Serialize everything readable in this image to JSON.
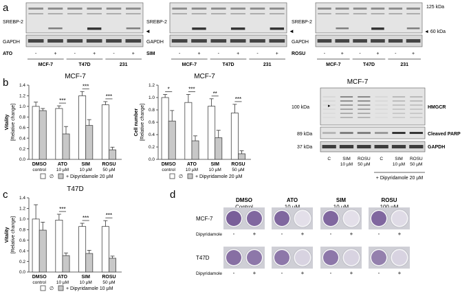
{
  "panels": {
    "a": {
      "letter": "a",
      "blots": [
        {
          "treatment": "ATO",
          "signs": [
            "-",
            "+",
            "-",
            "+",
            "-",
            "+"
          ]
        },
        {
          "treatment": "SIM",
          "signs": [
            "-",
            "+",
            "-",
            "+",
            "-",
            "+"
          ]
        },
        {
          "treatment": "ROSU",
          "signs": [
            "-",
            "+",
            "-",
            "+",
            "-",
            "+"
          ]
        }
      ],
      "protein_top": "SREBP-2",
      "protein_bottom": "GAPDH",
      "cell_lines": [
        "MCF-7",
        "T47D",
        "231"
      ],
      "marker_125": "125 kDa",
      "marker_60": "◄ 60 kDa"
    },
    "b": {
      "letter": "b",
      "western": {
        "title": "MCF-7",
        "marker_100": "100 kDa",
        "marker_89": "89 kDa",
        "marker_37": "37 kDa",
        "labels": [
          "HMGCR",
          "Cleaved PARP",
          "GAPDH"
        ],
        "lanes": [
          "C",
          "SIM\n10 µM",
          "ROSU\n50 µM",
          "C",
          "SIM\n10 µM",
          "ROSU\n50 µM"
        ],
        "dipy_label": "+ Dipyridamole 20 µM"
      },
      "legend_empty": "∅",
      "legend_dipy": "+ Dipyridamole 20 µM"
    },
    "c": {
      "letter": "c",
      "legend_empty": "∅",
      "legend_dipy": "+ Dipyridamole 10 µM"
    },
    "d": {
      "letter": "d",
      "treatments": [
        {
          "name": "DMSO",
          "dose": "Control"
        },
        {
          "name": "ATO",
          "dose": "10 µM"
        },
        {
          "name": "SIM",
          "dose": "10 µM"
        },
        {
          "name": "ROSU",
          "dose": "100 µM"
        }
      ],
      "rows": [
        "MCF-7",
        "T47D"
      ],
      "dipy_row_label": "Dipyridamole",
      "signs": [
        "-",
        "+"
      ]
    }
  },
  "chart_data": [
    {
      "type": "bar",
      "panel": "b-left",
      "title": "MCF-7",
      "ylabel": "Vitality\n[Relative change]",
      "ylim": [
        0,
        1.4
      ],
      "yticks": [
        "0.0",
        "0.2",
        "0.4",
        "0.6",
        "0.8",
        "1.0",
        "1.2",
        "1.4"
      ],
      "categories": [
        "DMSO\ncontrol",
        "ATO\n10 µM",
        "SIM\n10 µM",
        "ROSU\n50 µM"
      ],
      "series": [
        {
          "name": "∅",
          "values": [
            1.0,
            0.96,
            1.2,
            1.03
          ],
          "errors": [
            0.08,
            0.05,
            0.08,
            0.06
          ]
        },
        {
          "name": "+ Dipyridamole 20 µM",
          "values": [
            0.92,
            0.48,
            0.64,
            0.18
          ],
          "errors": [
            0.04,
            0.14,
            0.11,
            0.05
          ]
        }
      ],
      "significance": [
        "",
        "***",
        "***",
        "***"
      ]
    },
    {
      "type": "bar",
      "panel": "b-middle",
      "title": "MCF-7",
      "ylabel": "Cell number\n[Relative change]",
      "ylim": [
        0,
        1.2
      ],
      "yticks": [
        "0.0",
        "0.2",
        "0.4",
        "0.6",
        "0.8",
        "1.0",
        "1.2"
      ],
      "categories": [
        "DMSO\ncontrol",
        "ATO\n10 µM",
        "SIM\n10 µM",
        "ROSU\n50 µM"
      ],
      "series": [
        {
          "name": "∅",
          "values": [
            1.0,
            0.92,
            0.86,
            0.75
          ],
          "errors": [
            0.05,
            0.13,
            0.12,
            0.14
          ]
        },
        {
          "name": "+ Dipyridamole 20 µM",
          "values": [
            0.62,
            0.3,
            0.35,
            0.09
          ],
          "errors": [
            0.17,
            0.08,
            0.12,
            0.05
          ]
        }
      ],
      "significance": [
        "*",
        "***",
        "**",
        "***"
      ]
    },
    {
      "type": "bar",
      "panel": "c",
      "title": "T47D",
      "ylabel": "Vitality\n[Relative change]",
      "ylim": [
        0,
        1.4
      ],
      "yticks": [
        "0.0",
        "0.2",
        "0.4",
        "0.6",
        "0.8",
        "1.0",
        "1.2",
        "1.4"
      ],
      "categories": [
        "DMSO\ncontrol",
        "ATO\n10 µM",
        "SIM\n10 µM",
        "ROSU\n50 µM"
      ],
      "series": [
        {
          "name": "∅",
          "values": [
            1.0,
            0.98,
            0.86,
            0.86
          ],
          "errors": [
            0.27,
            0.11,
            0.06,
            0.11
          ]
        },
        {
          "name": "+ Dipyridamole 10 µM",
          "values": [
            0.79,
            0.31,
            0.35,
            0.26
          ],
          "errors": [
            0.15,
            0.05,
            0.06,
            0.04
          ]
        }
      ],
      "significance": [
        "",
        "***",
        "***",
        "***"
      ]
    }
  ]
}
